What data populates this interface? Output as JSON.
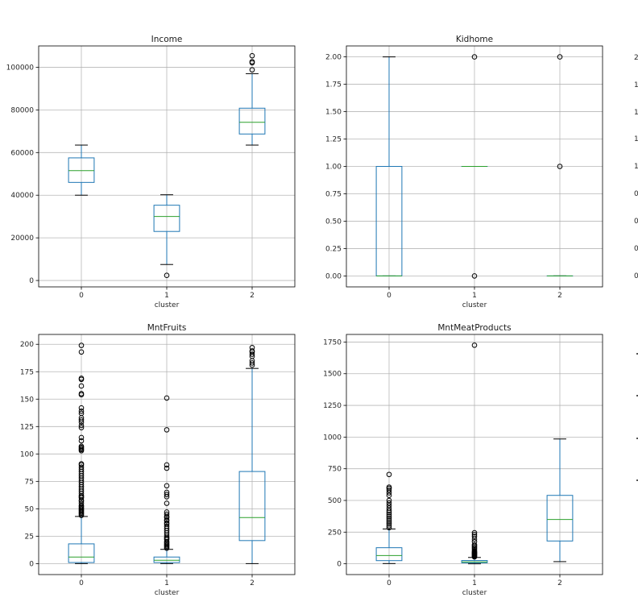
{
  "chart_data": [
    {
      "type": "box",
      "title": "Income",
      "xlabel": "cluster",
      "ylabel": "",
      "categories": [
        "0",
        "1",
        "2"
      ],
      "ylim": [
        -3000,
        110000
      ],
      "yticks": [
        0,
        20000,
        40000,
        60000,
        80000,
        100000
      ],
      "ytick_labels": [
        "0",
        "20000",
        "40000",
        "60000",
        "80000",
        "100000"
      ],
      "grid": true,
      "boxes": [
        {
          "cluster": "0",
          "whislo": 40000,
          "q1": 46000,
          "med": 51500,
          "q3": 57500,
          "whishi": 63500,
          "fliers": []
        },
        {
          "cluster": "1",
          "whislo": 7500,
          "q1": 23000,
          "med": 30000,
          "q3": 35300,
          "whishi": 40200,
          "fliers": [
            2400
          ]
        },
        {
          "cluster": "2",
          "whislo": 63500,
          "q1": 68700,
          "med": 74200,
          "q3": 80800,
          "whishi": 97000,
          "fliers": [
            98800,
            102100,
            102600,
            105400
          ]
        }
      ]
    },
    {
      "type": "box",
      "title": "Kidhome",
      "xlabel": "cluster",
      "ylabel": "",
      "categories": [
        "0",
        "1",
        "2"
      ],
      "ylim": [
        -0.1,
        2.1
      ],
      "yticks": [
        0,
        0.25,
        0.5,
        0.75,
        1.0,
        1.25,
        1.5,
        1.75,
        2.0
      ],
      "ytick_labels": [
        "0.00",
        "0.25",
        "0.50",
        "0.75",
        "1.00",
        "1.25",
        "1.50",
        "1.75",
        "2.00"
      ],
      "grid": true,
      "boxes": [
        {
          "cluster": "0",
          "whislo": 0,
          "q1": 0,
          "med": 0,
          "q3": 1,
          "whishi": 2,
          "fliers": []
        },
        {
          "cluster": "1",
          "whislo": 1,
          "q1": 1,
          "med": 1,
          "q3": 1,
          "whishi": 1,
          "fliers": [
            0,
            2
          ]
        },
        {
          "cluster": "2",
          "whislo": 0,
          "q1": 0,
          "med": 0,
          "q3": 0,
          "whishi": 0,
          "fliers": [
            1,
            2
          ]
        }
      ]
    },
    {
      "type": "box",
      "title": "MntFruits",
      "xlabel": "cluster",
      "ylabel": "",
      "categories": [
        "0",
        "1",
        "2"
      ],
      "ylim": [
        -10,
        209
      ],
      "yticks": [
        0,
        25,
        50,
        75,
        100,
        125,
        150,
        175,
        200
      ],
      "ytick_labels": [
        "0",
        "25",
        "50",
        "75",
        "100",
        "125",
        "150",
        "175",
        "200"
      ],
      "grid": true,
      "boxes": [
        {
          "cluster": "0",
          "whislo": 0,
          "q1": 1,
          "med": 6,
          "q3": 18,
          "whishi": 43,
          "fliers": [
            44,
            45,
            46,
            47,
            48,
            49,
            50,
            51,
            52,
            53,
            55,
            57,
            58,
            60,
            61,
            62,
            64,
            66,
            68,
            70,
            72,
            74,
            76,
            78,
            80,
            82,
            84,
            86,
            88,
            90,
            91,
            103,
            104,
            105,
            106,
            107,
            112,
            115,
            124,
            126,
            129,
            131,
            133,
            137,
            139,
            142,
            154,
            155,
            162,
            168,
            169,
            193,
            199
          ]
        },
        {
          "cluster": "1",
          "whislo": 0,
          "q1": 1,
          "med": 3,
          "q3": 6,
          "whishi": 13,
          "fliers": [
            14,
            15,
            16,
            17,
            18,
            19,
            20,
            22,
            23,
            24,
            26,
            28,
            30,
            32,
            34,
            36,
            37,
            39,
            40,
            42,
            43,
            45,
            47,
            55,
            61,
            63,
            65,
            71,
            87,
            90,
            122,
            151
          ]
        },
        {
          "cluster": "2",
          "whislo": 0,
          "q1": 21,
          "med": 42,
          "q3": 84,
          "whishi": 178,
          "fliers": [
            181,
            183,
            185,
            189,
            191,
            193,
            194,
            197
          ]
        }
      ]
    },
    {
      "type": "box",
      "title": "MntMeatProducts",
      "xlabel": "cluster",
      "ylabel": "",
      "categories": [
        "0",
        "1",
        "2"
      ],
      "ylim": [
        -85,
        1810
      ],
      "yticks": [
        0,
        250,
        500,
        750,
        1000,
        1250,
        1500,
        1750
      ],
      "ytick_labels": [
        "0",
        "250",
        "500",
        "750",
        "1000",
        "1250",
        "1500",
        "1750"
      ],
      "grid": true,
      "boxes": [
        {
          "cluster": "0",
          "whislo": 2,
          "q1": 25,
          "med": 65,
          "q3": 127,
          "whishi": 275,
          "fliers": [
            285,
            300,
            315,
            330,
            345,
            360,
            375,
            390,
            405,
            420,
            440,
            460,
            480,
            500,
            540,
            560,
            580,
            595,
            605,
            705
          ]
        },
        {
          "cluster": "1",
          "whislo": 0,
          "q1": 8,
          "med": 15,
          "q3": 26,
          "whishi": 50,
          "fliers": [
            55,
            60,
            65,
            70,
            75,
            80,
            85,
            90,
            95,
            100,
            110,
            120,
            130,
            140,
            150,
            175,
            195,
            215,
            230,
            245,
            1725
          ]
        },
        {
          "cluster": "2",
          "whislo": 17,
          "q1": 180,
          "med": 350,
          "q3": 540,
          "whishi": 985,
          "fliers": []
        }
      ]
    }
  ],
  "partial_panels": {
    "top_right_tick_labels": [
      "2",
      "1",
      "1",
      "1",
      "1",
      "0",
      "0",
      "0",
      "0"
    ]
  },
  "colors": {
    "box": "#1f77b4",
    "median": "#2ca02c",
    "whisker_cap": "#000000",
    "flier": "#000000",
    "grid": "#b0b0b0",
    "frame": "#000000"
  }
}
